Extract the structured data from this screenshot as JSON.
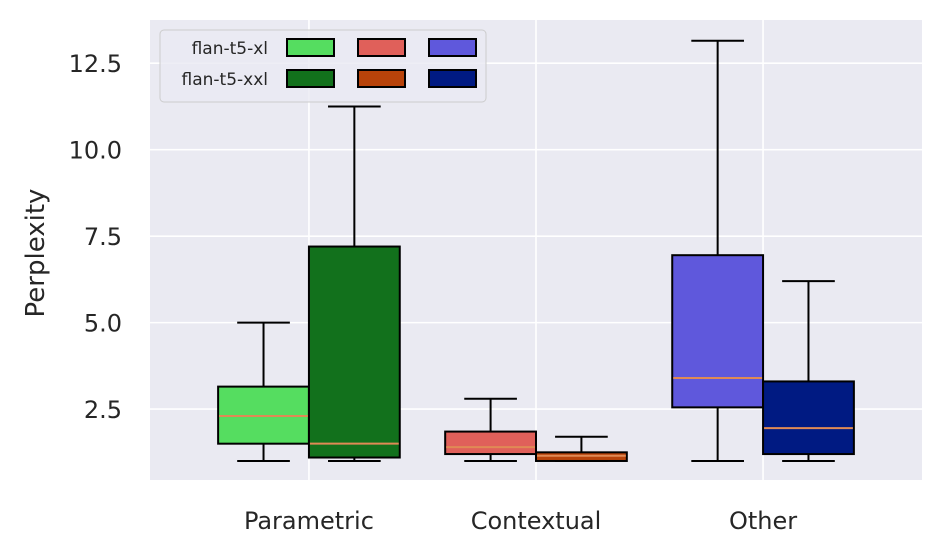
{
  "chart_data": {
    "type": "box",
    "xlabel": "",
    "ylabel": "Perplexity",
    "ylim": [
      0.45,
      13.75
    ],
    "yticks": [
      2.5,
      5.0,
      7.5,
      10.0,
      12.5
    ],
    "ytick_labels": [
      "2.5",
      "5.0",
      "7.5",
      "10.0",
      "12.5"
    ],
    "categories": [
      "Parametric",
      "Contextual",
      "Other"
    ],
    "grid": true,
    "legend_position": "top-left",
    "legend_rows": [
      "flan-t5-xl",
      "flan-t5-xxl"
    ],
    "series": [
      {
        "name": "flan-t5-xl",
        "boxes": [
          {
            "category": "Parametric",
            "whisker_low": 1.0,
            "q1": 1.5,
            "median": 2.3,
            "q3": 3.15,
            "whisker_high": 5.0,
            "color": "#55dd60"
          },
          {
            "category": "Contextual",
            "whisker_low": 1.0,
            "q1": 1.2,
            "median": 1.4,
            "q3": 1.85,
            "whisker_high": 2.8,
            "color": "#e0605a"
          },
          {
            "category": "Other",
            "whisker_low": 1.0,
            "q1": 2.55,
            "median": 3.4,
            "q3": 6.95,
            "whisker_high": 13.15,
            "color": "#5f58dc"
          }
        ]
      },
      {
        "name": "flan-t5-xxl",
        "boxes": [
          {
            "category": "Parametric",
            "whisker_low": 1.0,
            "q1": 1.1,
            "median": 1.5,
            "q3": 7.2,
            "whisker_high": 11.25,
            "color": "#12711c"
          },
          {
            "category": "Contextual",
            "whisker_low": 1.0,
            "q1": 1.0,
            "median": 1.15,
            "q3": 1.25,
            "whisker_high": 1.7,
            "color": "#b8430a"
          },
          {
            "category": "Other",
            "whisker_low": 1.0,
            "q1": 1.2,
            "median": 1.95,
            "q3": 3.3,
            "whisker_high": 6.2,
            "color": "#001a82"
          }
        ]
      }
    ],
    "colors": {
      "background": "#eaeaf2",
      "grid": "#ffffff",
      "median": "#e08a55",
      "edge": "#000000"
    }
  }
}
